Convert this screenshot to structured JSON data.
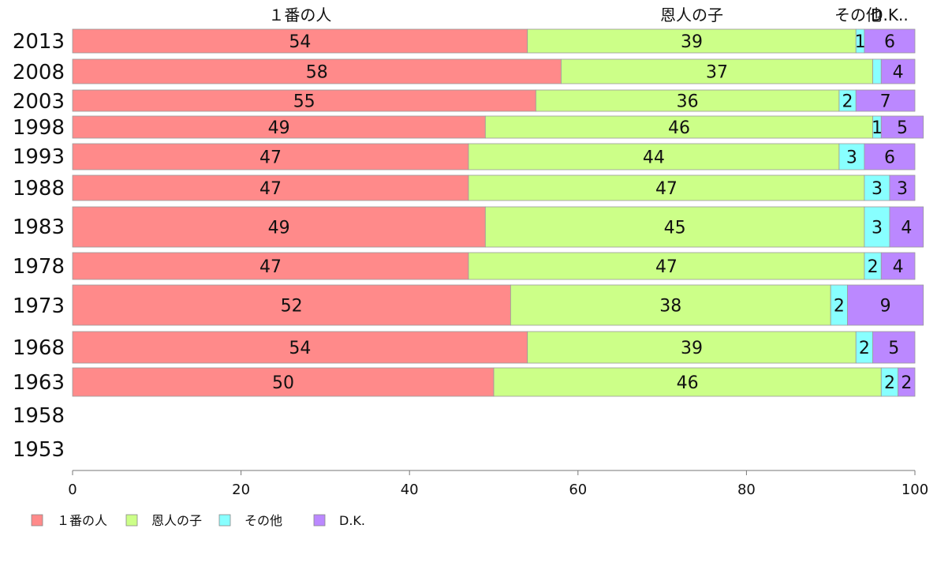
{
  "chart_data": {
    "type": "bar",
    "orientation": "horizontal",
    "stacked": true,
    "categories": [
      "2013",
      "2008",
      "2003",
      "1998",
      "1993",
      "1988",
      "1983",
      "1978",
      "1973",
      "1968",
      "1963",
      "1958",
      "1953"
    ],
    "series": [
      {
        "name": "１番の人",
        "color": "#FF8A8A",
        "values": [
          54,
          58,
          55,
          49,
          47,
          47,
          49,
          47,
          52,
          54,
          50,
          null,
          null
        ]
      },
      {
        "name": "恩人の子",
        "color": "#CCFF88",
        "values": [
          39,
          37,
          36,
          46,
          44,
          47,
          45,
          47,
          38,
          39,
          46,
          null,
          null
        ]
      },
      {
        "name": "その他",
        "color": "#88FFFF",
        "values": [
          1,
          1,
          2,
          1,
          3,
          3,
          3,
          2,
          2,
          2,
          2,
          null,
          null
        ]
      },
      {
        "name": "D.K.",
        "color": "#BB88FF",
        "values": [
          6,
          4,
          7,
          5,
          6,
          3,
          4,
          4,
          9,
          5,
          2,
          null,
          null
        ]
      }
    ],
    "data_labels": [
      [
        "54",
        "39",
        "1",
        "6"
      ],
      [
        "58",
        "37",
        "",
        "4"
      ],
      [
        "55",
        "36",
        "2",
        "7"
      ],
      [
        "49",
        "46",
        "1",
        "5"
      ],
      [
        "47",
        "44",
        "3",
        "6"
      ],
      [
        "47",
        "47",
        "3",
        "3"
      ],
      [
        "49",
        "45",
        "3",
        "4"
      ],
      [
        "47",
        "47",
        "2",
        "4"
      ],
      [
        "52",
        "38",
        "2",
        "9"
      ],
      [
        "54",
        "39",
        "2",
        "5"
      ],
      [
        "50",
        "46",
        "2",
        "2"
      ],
      [],
      []
    ],
    "top_labels": [
      "１番の人",
      "恩人の子",
      "その他",
      "D.K.."
    ],
    "xlim": [
      0,
      100
    ],
    "xticks": [
      "0",
      "20",
      "40",
      "60",
      "80",
      "100"
    ],
    "legend_position": "bottom-left",
    "grid": false
  }
}
